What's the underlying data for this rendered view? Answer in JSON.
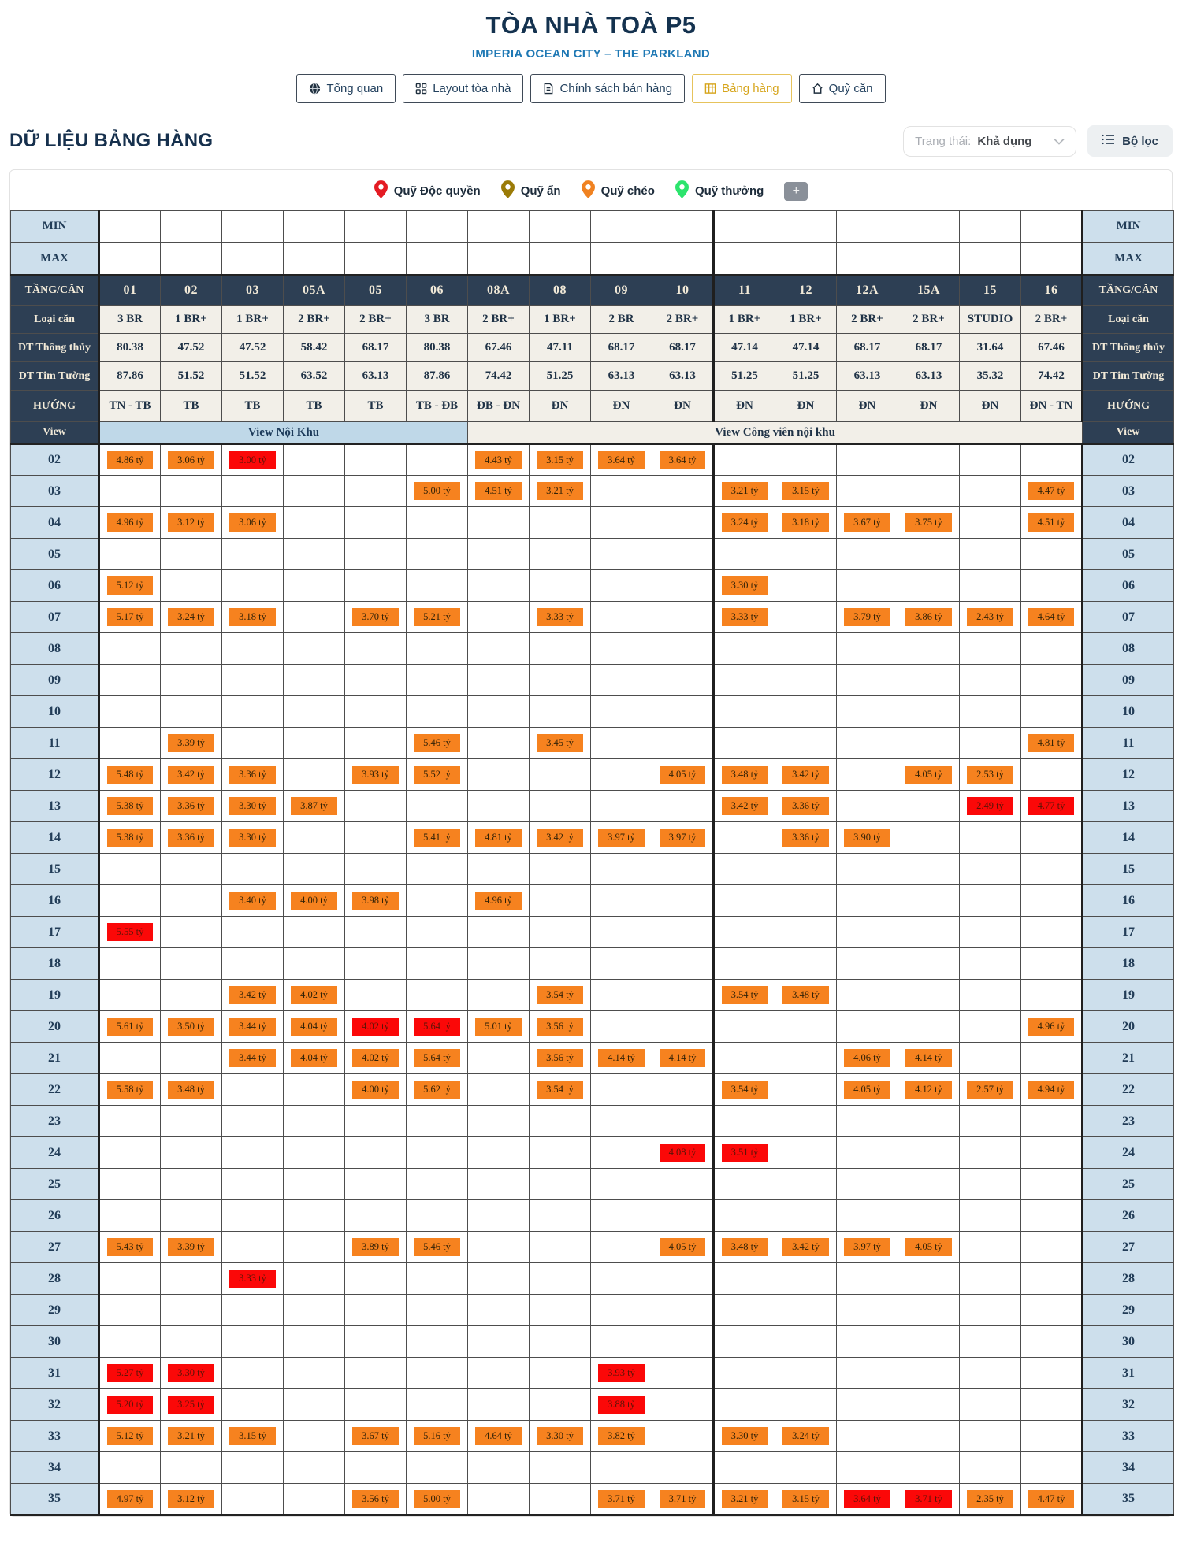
{
  "header": {
    "title": "TÒA NHÀ TOÀ P5",
    "subtitle": "IMPERIA OCEAN CITY – THE PARKLAND",
    "tabs": [
      {
        "label": "Tổng quan",
        "icon": "globe-icon",
        "active": false
      },
      {
        "label": "Layout tòa nhà",
        "icon": "layout-icon",
        "active": false
      },
      {
        "label": "Chính sách bán hàng",
        "icon": "document-icon",
        "active": false
      },
      {
        "label": "Bảng hàng",
        "icon": "table-icon",
        "active": true
      },
      {
        "label": "Quỹ căn",
        "icon": "house-icon",
        "active": false
      }
    ]
  },
  "toolbar": {
    "section_title": "DỮ LIỆU BẢNG HÀNG",
    "status_filter": {
      "label": "Trạng thái:",
      "value": "Khả dụng"
    },
    "filter_button_label": "Bộ lọc"
  },
  "legend": {
    "items": [
      {
        "label": "Quỹ Độc quyền",
        "color": "#e41b23"
      },
      {
        "label": "Quỹ ẩn",
        "color": "#9b7b07"
      },
      {
        "label": "Quỹ chéo",
        "color": "#f08221"
      },
      {
        "label": "Quỹ thưởng",
        "color": "#2ce46d"
      }
    ],
    "add_button_label": "+"
  },
  "table": {
    "row_labels": {
      "min": "MIN",
      "max": "MAX",
      "floor_unit": "TẦNG/CĂN",
      "unit_type": "Loại căn",
      "dt_thong_thuy": "DT Thông thủy",
      "dt_tim_tuong": "DT Tim Tường",
      "direction": "HƯỚNG",
      "view": "View"
    },
    "columns": [
      "01",
      "02",
      "03",
      "05A",
      "05",
      "06",
      "08A",
      "08",
      "09",
      "10",
      "11",
      "12",
      "12A",
      "15A",
      "15",
      "16"
    ],
    "unit_types": [
      "3 BR",
      "1 BR+",
      "1 BR+",
      "2 BR+",
      "2 BR+",
      "3 BR",
      "2 BR+",
      "1 BR+",
      "2 BR",
      "2 BR+",
      "1 BR+",
      "1 BR+",
      "2 BR+",
      "2 BR+",
      "STUDIO",
      "2 BR+"
    ],
    "dt_thong_thuy": [
      "80.38",
      "47.52",
      "47.52",
      "58.42",
      "68.17",
      "80.38",
      "67.46",
      "47.11",
      "68.17",
      "68.17",
      "47.14",
      "47.14",
      "68.17",
      "68.17",
      "31.64",
      "67.46"
    ],
    "dt_tim_tuong": [
      "87.86",
      "51.52",
      "51.52",
      "63.52",
      "63.13",
      "87.86",
      "74.42",
      "51.25",
      "63.13",
      "63.13",
      "51.25",
      "51.25",
      "63.13",
      "63.13",
      "35.32",
      "74.42"
    ],
    "huong": [
      "TN - TB",
      "TB",
      "TB",
      "TB",
      "TB",
      "TB - ĐB",
      "ĐB - ĐN",
      "ĐN",
      "ĐN",
      "ĐN",
      "ĐN",
      "ĐN",
      "ĐN",
      "ĐN",
      "ĐN",
      "ĐN - TN"
    ],
    "views": [
      {
        "label": "View Nội Khu",
        "span": 6
      },
      {
        "label": "View Công viên nội khu",
        "span": 10
      }
    ],
    "price_colors": {
      "standard": "#F6821F",
      "exclusive_red_prefix_*": "#FB0808"
    },
    "floors": [
      {
        "floor": "02",
        "cells": [
          "4.86 tỷ",
          "3.06 tỷ",
          "*3.00 tỷ",
          "",
          "",
          "",
          "4.43 tỷ",
          "3.15 tỷ",
          "3.64 tỷ",
          "3.64 tỷ",
          "",
          "",
          "",
          "",
          "",
          ""
        ]
      },
      {
        "floor": "03",
        "cells": [
          "",
          "",
          "",
          "",
          "",
          "5.00 tỷ",
          "4.51 tỷ",
          "3.21 tỷ",
          "",
          "",
          "3.21 tỷ",
          "3.15 tỷ",
          "",
          "",
          "",
          "4.47 tỷ"
        ]
      },
      {
        "floor": "04",
        "cells": [
          "4.96 tỷ",
          "3.12 tỷ",
          "3.06 tỷ",
          "",
          "",
          "",
          "",
          "",
          "",
          "",
          "3.24 tỷ",
          "3.18 tỷ",
          "3.67 tỷ",
          "3.75 tỷ",
          "",
          "4.51 tỷ"
        ]
      },
      {
        "floor": "05",
        "cells": [
          "",
          "",
          "",
          "",
          "",
          "",
          "",
          "",
          "",
          "",
          "",
          "",
          "",
          "",
          "",
          ""
        ]
      },
      {
        "floor": "06",
        "cells": [
          "5.12 tỷ",
          "",
          "",
          "",
          "",
          "",
          "",
          "",
          "",
          "",
          "3.30 tỷ",
          "",
          "",
          "",
          "",
          ""
        ]
      },
      {
        "floor": "07",
        "cells": [
          "5.17 tỷ",
          "3.24 tỷ",
          "3.18 tỷ",
          "",
          "3.70 tỷ",
          "5.21 tỷ",
          "",
          "3.33 tỷ",
          "",
          "",
          "3.33 tỷ",
          "",
          "3.79 tỷ",
          "3.86 tỷ",
          "2.43 tỷ",
          "4.64 tỷ"
        ]
      },
      {
        "floor": "08",
        "cells": [
          "",
          "",
          "",
          "",
          "",
          "",
          "",
          "",
          "",
          "",
          "",
          "",
          "",
          "",
          "",
          ""
        ]
      },
      {
        "floor": "09",
        "cells": [
          "",
          "",
          "",
          "",
          "",
          "",
          "",
          "",
          "",
          "",
          "",
          "",
          "",
          "",
          "",
          ""
        ]
      },
      {
        "floor": "10",
        "cells": [
          "",
          "",
          "",
          "",
          "",
          "",
          "",
          "",
          "",
          "",
          "",
          "",
          "",
          "",
          "",
          ""
        ]
      },
      {
        "floor": "11",
        "cells": [
          "",
          "3.39 tỷ",
          "",
          "",
          "",
          "5.46 tỷ",
          "",
          "3.45 tỷ",
          "",
          "",
          "",
          "",
          "",
          "",
          "",
          "4.81 tỷ"
        ]
      },
      {
        "floor": "12",
        "cells": [
          "5.48 tỷ",
          "3.42 tỷ",
          "3.36 tỷ",
          "",
          "3.93 tỷ",
          "5.52 tỷ",
          "",
          "",
          "",
          "4.05 tỷ",
          "3.48 tỷ",
          "3.42 tỷ",
          "",
          "4.05 tỷ",
          "2.53 tỷ",
          ""
        ]
      },
      {
        "floor": "13",
        "cells": [
          "5.38 tỷ",
          "3.36 tỷ",
          "3.30 tỷ",
          "3.87 tỷ",
          "",
          "",
          "",
          "",
          "",
          "",
          "3.42 tỷ",
          "3.36 tỷ",
          "",
          "",
          "*2.49 tỷ",
          "*4.77 tỷ"
        ]
      },
      {
        "floor": "14",
        "cells": [
          "5.38 tỷ",
          "3.36 tỷ",
          "3.30 tỷ",
          "",
          "",
          "5.41 tỷ",
          "4.81 tỷ",
          "3.42 tỷ",
          "3.97 tỷ",
          "3.97 tỷ",
          "",
          "3.36 tỷ",
          "3.90 tỷ",
          "",
          "",
          ""
        ]
      },
      {
        "floor": "15",
        "cells": [
          "",
          "",
          "",
          "",
          "",
          "",
          "",
          "",
          "",
          "",
          "",
          "",
          "",
          "",
          "",
          ""
        ]
      },
      {
        "floor": "16",
        "cells": [
          "",
          "",
          "3.40 tỷ",
          "4.00 tỷ",
          "3.98 tỷ",
          "",
          "4.96 tỷ",
          "",
          "",
          "",
          "",
          "",
          "",
          "",
          "",
          ""
        ]
      },
      {
        "floor": "17",
        "cells": [
          "*5.55 tỷ",
          "",
          "",
          "",
          "",
          "",
          "",
          "",
          "",
          "",
          "",
          "",
          "",
          "",
          "",
          ""
        ]
      },
      {
        "floor": "18",
        "cells": [
          "",
          "",
          "",
          "",
          "",
          "",
          "",
          "",
          "",
          "",
          "",
          "",
          "",
          "",
          "",
          ""
        ]
      },
      {
        "floor": "19",
        "cells": [
          "",
          "",
          "3.42 tỷ",
          "4.02 tỷ",
          "",
          "",
          "",
          "3.54 tỷ",
          "",
          "",
          "3.54 tỷ",
          "3.48 tỷ",
          "",
          "",
          "",
          ""
        ]
      },
      {
        "floor": "20",
        "cells": [
          "5.61 tỷ",
          "3.50 tỷ",
          "3.44 tỷ",
          "4.04 tỷ",
          "*4.02 tỷ",
          "*5.64 tỷ",
          "5.01 tỷ",
          "3.56 tỷ",
          "",
          "",
          "",
          "",
          "",
          "",
          "",
          "4.96 tỷ"
        ]
      },
      {
        "floor": "21",
        "cells": [
          "",
          "",
          "3.44 tỷ",
          "4.04 tỷ",
          "4.02 tỷ",
          "5.64 tỷ",
          "",
          "3.56 tỷ",
          "4.14 tỷ",
          "4.14 tỷ",
          "",
          "",
          "4.06 tỷ",
          "4.14 tỷ",
          "",
          ""
        ]
      },
      {
        "floor": "22",
        "cells": [
          "5.58 tỷ",
          "3.48 tỷ",
          "",
          "",
          "4.00 tỷ",
          "5.62 tỷ",
          "",
          "3.54 tỷ",
          "",
          "",
          "3.54 tỷ",
          "",
          "4.05 tỷ",
          "4.12 tỷ",
          "2.57 tỷ",
          "4.94 tỷ"
        ]
      },
      {
        "floor": "23",
        "cells": [
          "",
          "",
          "",
          "",
          "",
          "",
          "",
          "",
          "",
          "",
          "",
          "",
          "",
          "",
          "",
          ""
        ]
      },
      {
        "floor": "24",
        "cells": [
          "",
          "",
          "",
          "",
          "",
          "",
          "",
          "",
          "",
          "*4.08 tỷ",
          "*3.51 tỷ",
          "",
          "",
          "",
          "",
          ""
        ]
      },
      {
        "floor": "25",
        "cells": [
          "",
          "",
          "",
          "",
          "",
          "",
          "",
          "",
          "",
          "",
          "",
          "",
          "",
          "",
          "",
          ""
        ]
      },
      {
        "floor": "26",
        "cells": [
          "",
          "",
          "",
          "",
          "",
          "",
          "",
          "",
          "",
          "",
          "",
          "",
          "",
          "",
          "",
          ""
        ]
      },
      {
        "floor": "27",
        "cells": [
          "5.43 tỷ",
          "3.39 tỷ",
          "",
          "",
          "3.89 tỷ",
          "5.46 tỷ",
          "",
          "",
          "",
          "4.05 tỷ",
          "3.48 tỷ",
          "3.42 tỷ",
          "3.97 tỷ",
          "4.05 tỷ",
          "",
          ""
        ]
      },
      {
        "floor": "28",
        "cells": [
          "",
          "",
          "*3.33 tỷ",
          "",
          "",
          "",
          "",
          "",
          "",
          "",
          "",
          "",
          "",
          "",
          "",
          ""
        ]
      },
      {
        "floor": "29",
        "cells": [
          "",
          "",
          "",
          "",
          "",
          "",
          "",
          "",
          "",
          "",
          "",
          "",
          "",
          "",
          "",
          ""
        ]
      },
      {
        "floor": "30",
        "cells": [
          "",
          "",
          "",
          "",
          "",
          "",
          "",
          "",
          "",
          "",
          "",
          "",
          "",
          "",
          "",
          ""
        ]
      },
      {
        "floor": "31",
        "cells": [
          "*5.27 tỷ",
          "*3.30 tỷ",
          "",
          "",
          "",
          "",
          "",
          "",
          "*3.93 tỷ",
          "",
          "",
          "",
          "",
          "",
          "",
          ""
        ]
      },
      {
        "floor": "32",
        "cells": [
          "*5.20 tỷ",
          "*3.25 tỷ",
          "",
          "",
          "",
          "",
          "",
          "",
          "*3.88 tỷ",
          "",
          "",
          "",
          "",
          "",
          "",
          ""
        ]
      },
      {
        "floor": "33",
        "cells": [
          "5.12 tỷ",
          "3.21 tỷ",
          "3.15 tỷ",
          "",
          "3.67 tỷ",
          "5.16 tỷ",
          "4.64 tỷ",
          "3.30 tỷ",
          "3.82 tỷ",
          "",
          "3.30 tỷ",
          "3.24 tỷ",
          "",
          "",
          "",
          ""
        ]
      },
      {
        "floor": "34",
        "cells": [
          "",
          "",
          "",
          "",
          "",
          "",
          "",
          "",
          "",
          "",
          "",
          "",
          "",
          "",
          "",
          ""
        ]
      },
      {
        "floor": "35",
        "cells": [
          "4.97 tỷ",
          "3.12 tỷ",
          "",
          "",
          "3.56 tỷ",
          "5.00 tỷ",
          "",
          "",
          "3.71 tỷ",
          "3.71 tỷ",
          "3.21 tỷ",
          "3.15 tỷ",
          "*3.64 tỷ",
          "*3.71 tỷ",
          "2.35 tỷ",
          "4.47 tỷ"
        ]
      }
    ]
  }
}
